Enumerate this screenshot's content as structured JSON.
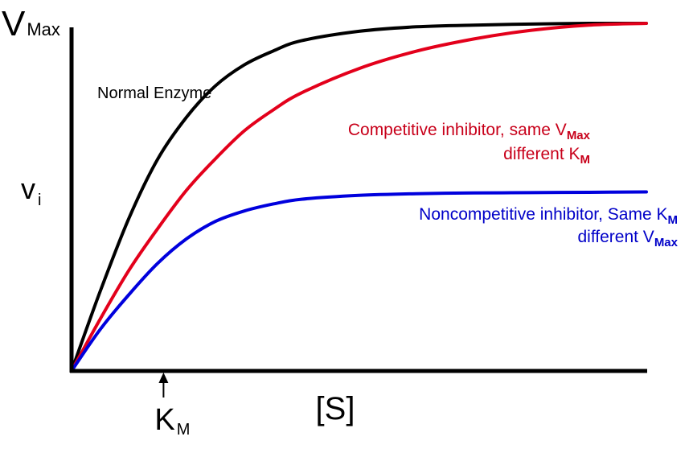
{
  "chart_data": {
    "type": "line",
    "title": "",
    "xlabel": "[S]",
    "ylabel": "v",
    "ylabel_sub": "i",
    "y_top_label": "V",
    "y_top_label_sub": "Max",
    "x_marker": {
      "label": "K",
      "sub": "M",
      "x": 1.6
    },
    "xlim": [
      0,
      10
    ],
    "ylim": [
      0,
      1
    ],
    "grid": false,
    "series": [
      {
        "name": "Normal Enzyme",
        "color": "#000000",
        "x": [
          0,
          0.5,
          1,
          1.5,
          2,
          2.5,
          3,
          3.5,
          4,
          5,
          6,
          7,
          8,
          9,
          10
        ],
        "values": [
          0,
          0.23,
          0.44,
          0.61,
          0.73,
          0.82,
          0.88,
          0.92,
          0.95,
          0.977,
          0.99,
          0.995,
          0.998,
          1.0,
          1.0
        ]
      },
      {
        "name": "Competitive inhibitor",
        "color": "#e3001b",
        "x": [
          0,
          0.5,
          1,
          1.5,
          2,
          2.5,
          3,
          3.5,
          4,
          5,
          6,
          7,
          8,
          9,
          10
        ],
        "values": [
          0,
          0.15,
          0.29,
          0.41,
          0.52,
          0.61,
          0.69,
          0.75,
          0.8,
          0.87,
          0.92,
          0.955,
          0.98,
          0.995,
          1.0
        ]
      },
      {
        "name": "Noncompetitive inhibitor",
        "color": "#0000dd",
        "x": [
          0,
          0.5,
          1,
          1.5,
          2,
          2.5,
          3,
          3.5,
          4,
          5,
          6,
          7,
          8,
          9,
          10
        ],
        "values": [
          0,
          0.12,
          0.22,
          0.31,
          0.38,
          0.43,
          0.46,
          0.48,
          0.494,
          0.505,
          0.51,
          0.512,
          0.513,
          0.514,
          0.515
        ]
      }
    ],
    "annotations": [
      {
        "id": "normal",
        "color": "#000000",
        "lines": [
          [
            {
              "t": "Normal Enzyme"
            }
          ]
        ]
      },
      {
        "id": "competitive",
        "color": "#c8001a",
        "lines": [
          [
            {
              "t": "Competitive inhibitor,  same V"
            },
            {
              "t": "Max",
              "sub": true
            }
          ],
          [
            {
              "t": "different K"
            },
            {
              "t": "M",
              "sub": true
            }
          ]
        ]
      },
      {
        "id": "noncompetitive",
        "color": "#0000c8",
        "lines": [
          [
            {
              "t": "Noncompetitive inhibitor,  Same K"
            },
            {
              "t": "M",
              "sub": true
            }
          ],
          [
            {
              "t": "different V"
            },
            {
              "t": "Max",
              "sub": true
            }
          ]
        ]
      }
    ]
  }
}
